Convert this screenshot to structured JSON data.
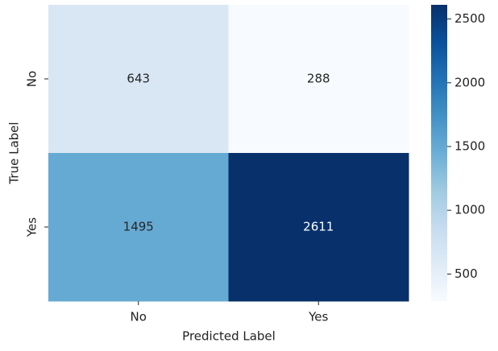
{
  "chart_data": {
    "type": "heatmap",
    "x_label": "Predicted Label",
    "y_label": "True Label",
    "x_categories": [
      "No",
      "Yes"
    ],
    "y_categories": [
      "No",
      "Yes"
    ],
    "values": [
      [
        643,
        288
      ],
      [
        1495,
        2611
      ]
    ],
    "colormap": "Blues",
    "clim": [
      288,
      2611
    ],
    "cticks": [
      500,
      1000,
      1500,
      2000,
      2500
    ]
  }
}
